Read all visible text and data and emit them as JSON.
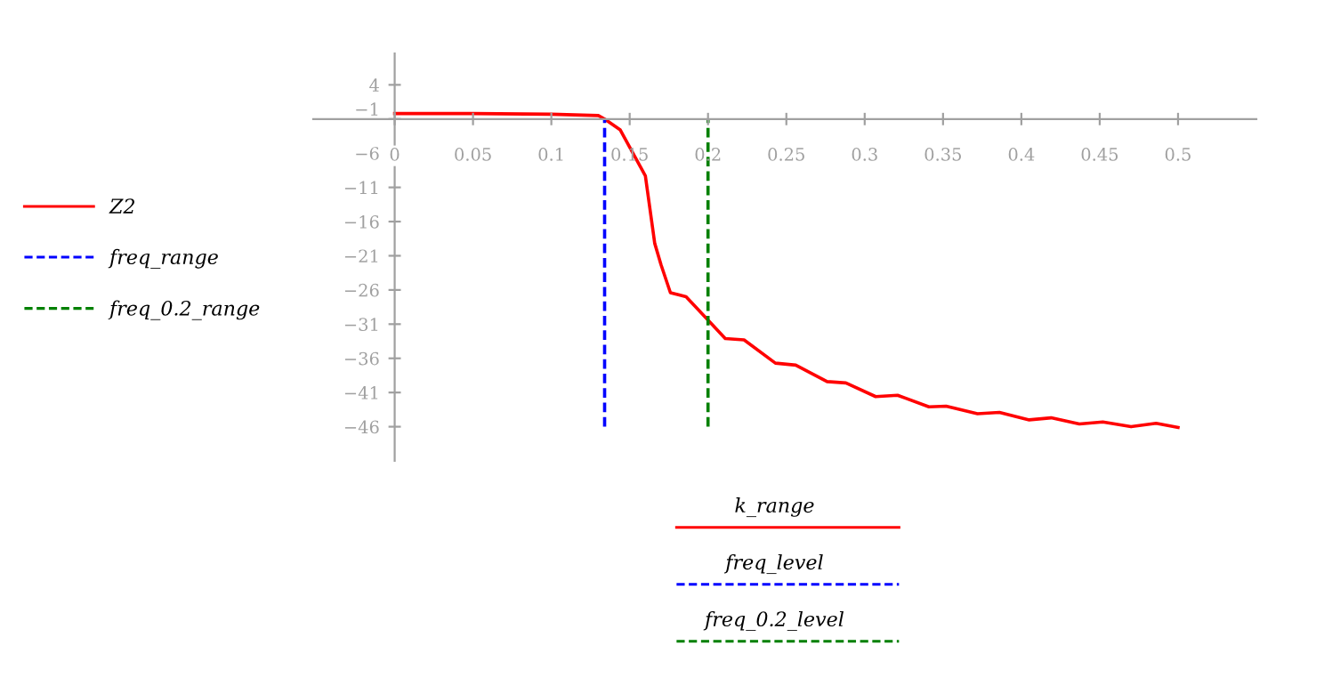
{
  "chart_data": {
    "type": "line",
    "xlim": [
      -0.052,
      0.55
    ],
    "ylim": [
      -51,
      8.6
    ],
    "xticks": [
      0,
      0.05,
      0.1,
      0.15,
      0.2,
      0.25,
      0.3,
      0.35,
      0.4,
      0.45,
      0.5
    ],
    "yticks": [
      4,
      -1,
      -6,
      -11,
      -16,
      -21,
      -26,
      -31,
      -36,
      -41,
      -46
    ],
    "legend": "left",
    "grid": false,
    "series": [
      {
        "name": "Z2",
        "color": "#ff0000",
        "line_style": "solid",
        "x": [
          0,
          0.05,
          0.1,
          0.13,
          0.134,
          0.144,
          0.16,
          0.166,
          0.17,
          0.176,
          0.186,
          0.2,
          0.211,
          0.223,
          0.243,
          0.256,
          0.276,
          0.288,
          0.307,
          0.321,
          0.341,
          0.352,
          0.372,
          0.386,
          0.405,
          0.419,
          0.437,
          0.452,
          0.47,
          0.486,
          0.5
        ],
        "values": [
          -0.2,
          -0.2,
          -0.3,
          -0.5,
          -1,
          -2.6,
          -9.3,
          -19.2,
          -22.3,
          -26.4,
          -27.0,
          -30.4,
          -33.1,
          -33.3,
          -36.7,
          -37.0,
          -39.4,
          -39.6,
          -41.6,
          -41.4,
          -43.1,
          -43.0,
          -44.1,
          -43.9,
          -45.0,
          -44.7,
          -45.6,
          -45.3,
          -46.0,
          -45.5,
          -46.1
        ]
      },
      {
        "name": "freq_range",
        "color": "#0000ff",
        "line_style": "dashed",
        "x": [
          0.134,
          0.134
        ],
        "values": [
          -46,
          -1
        ]
      },
      {
        "name": "freq_0.2_range",
        "color": "#008000",
        "line_style": "dashed",
        "x": [
          0.2,
          0.2
        ],
        "values": [
          -46,
          -1
        ]
      }
    ],
    "annotations": [
      "k_range",
      "freq_level",
      "freq_0.2_level"
    ]
  }
}
